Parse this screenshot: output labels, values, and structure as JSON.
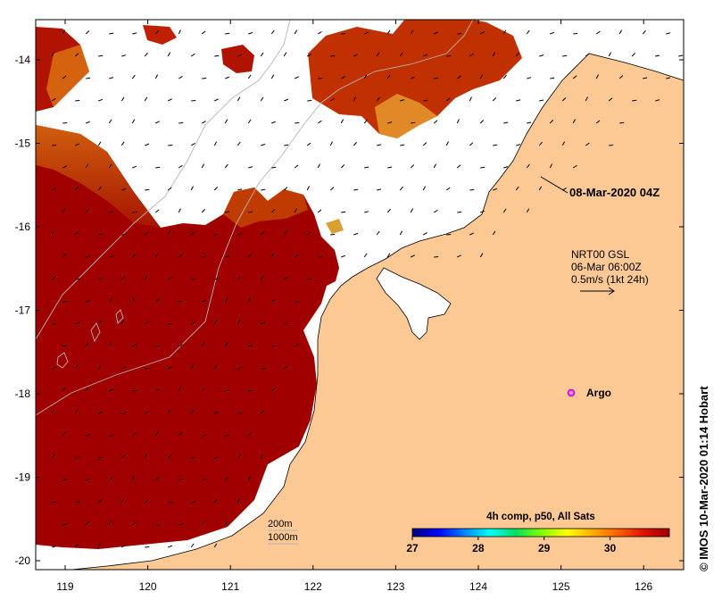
{
  "map": {
    "date_label": "08-Mar-2020 04Z",
    "current_product": "NRT00 GSL",
    "current_time": "06-Mar 06:00Z",
    "vector_scale": "0.5m/s (1kt 24h)",
    "marker_label": "Argo",
    "bathy_200_label": "200m",
    "bathy_1000_label": "1000m",
    "credit": "© IMOS 10-Mar-2020 01:14 Hobart",
    "lon_ticks": [
      "119",
      "120",
      "121",
      "122",
      "123",
      "124",
      "125",
      "126"
    ],
    "lat_ticks": [
      "-14",
      "-15",
      "-16",
      "-17",
      "-18",
      "-19",
      "-20"
    ],
    "colorbar": {
      "title": "4h comp, p50, All Sats",
      "ticks": [
        "27",
        "28",
        "29",
        "30"
      ],
      "range": [
        27,
        30.9
      ],
      "colors": [
        "#00007f",
        "#0000ff",
        "#0080ff",
        "#00ffff",
        "#00e060",
        "#7fff00",
        "#ffff00",
        "#ffb000",
        "#ff6000",
        "#e01000",
        "#9a0000"
      ]
    },
    "colors": {
      "land": "#fcc894",
      "sst_hot": "#a00000",
      "coast": "#000000",
      "bathy": "#b4b4b4",
      "argo": "#cc00cc"
    }
  }
}
